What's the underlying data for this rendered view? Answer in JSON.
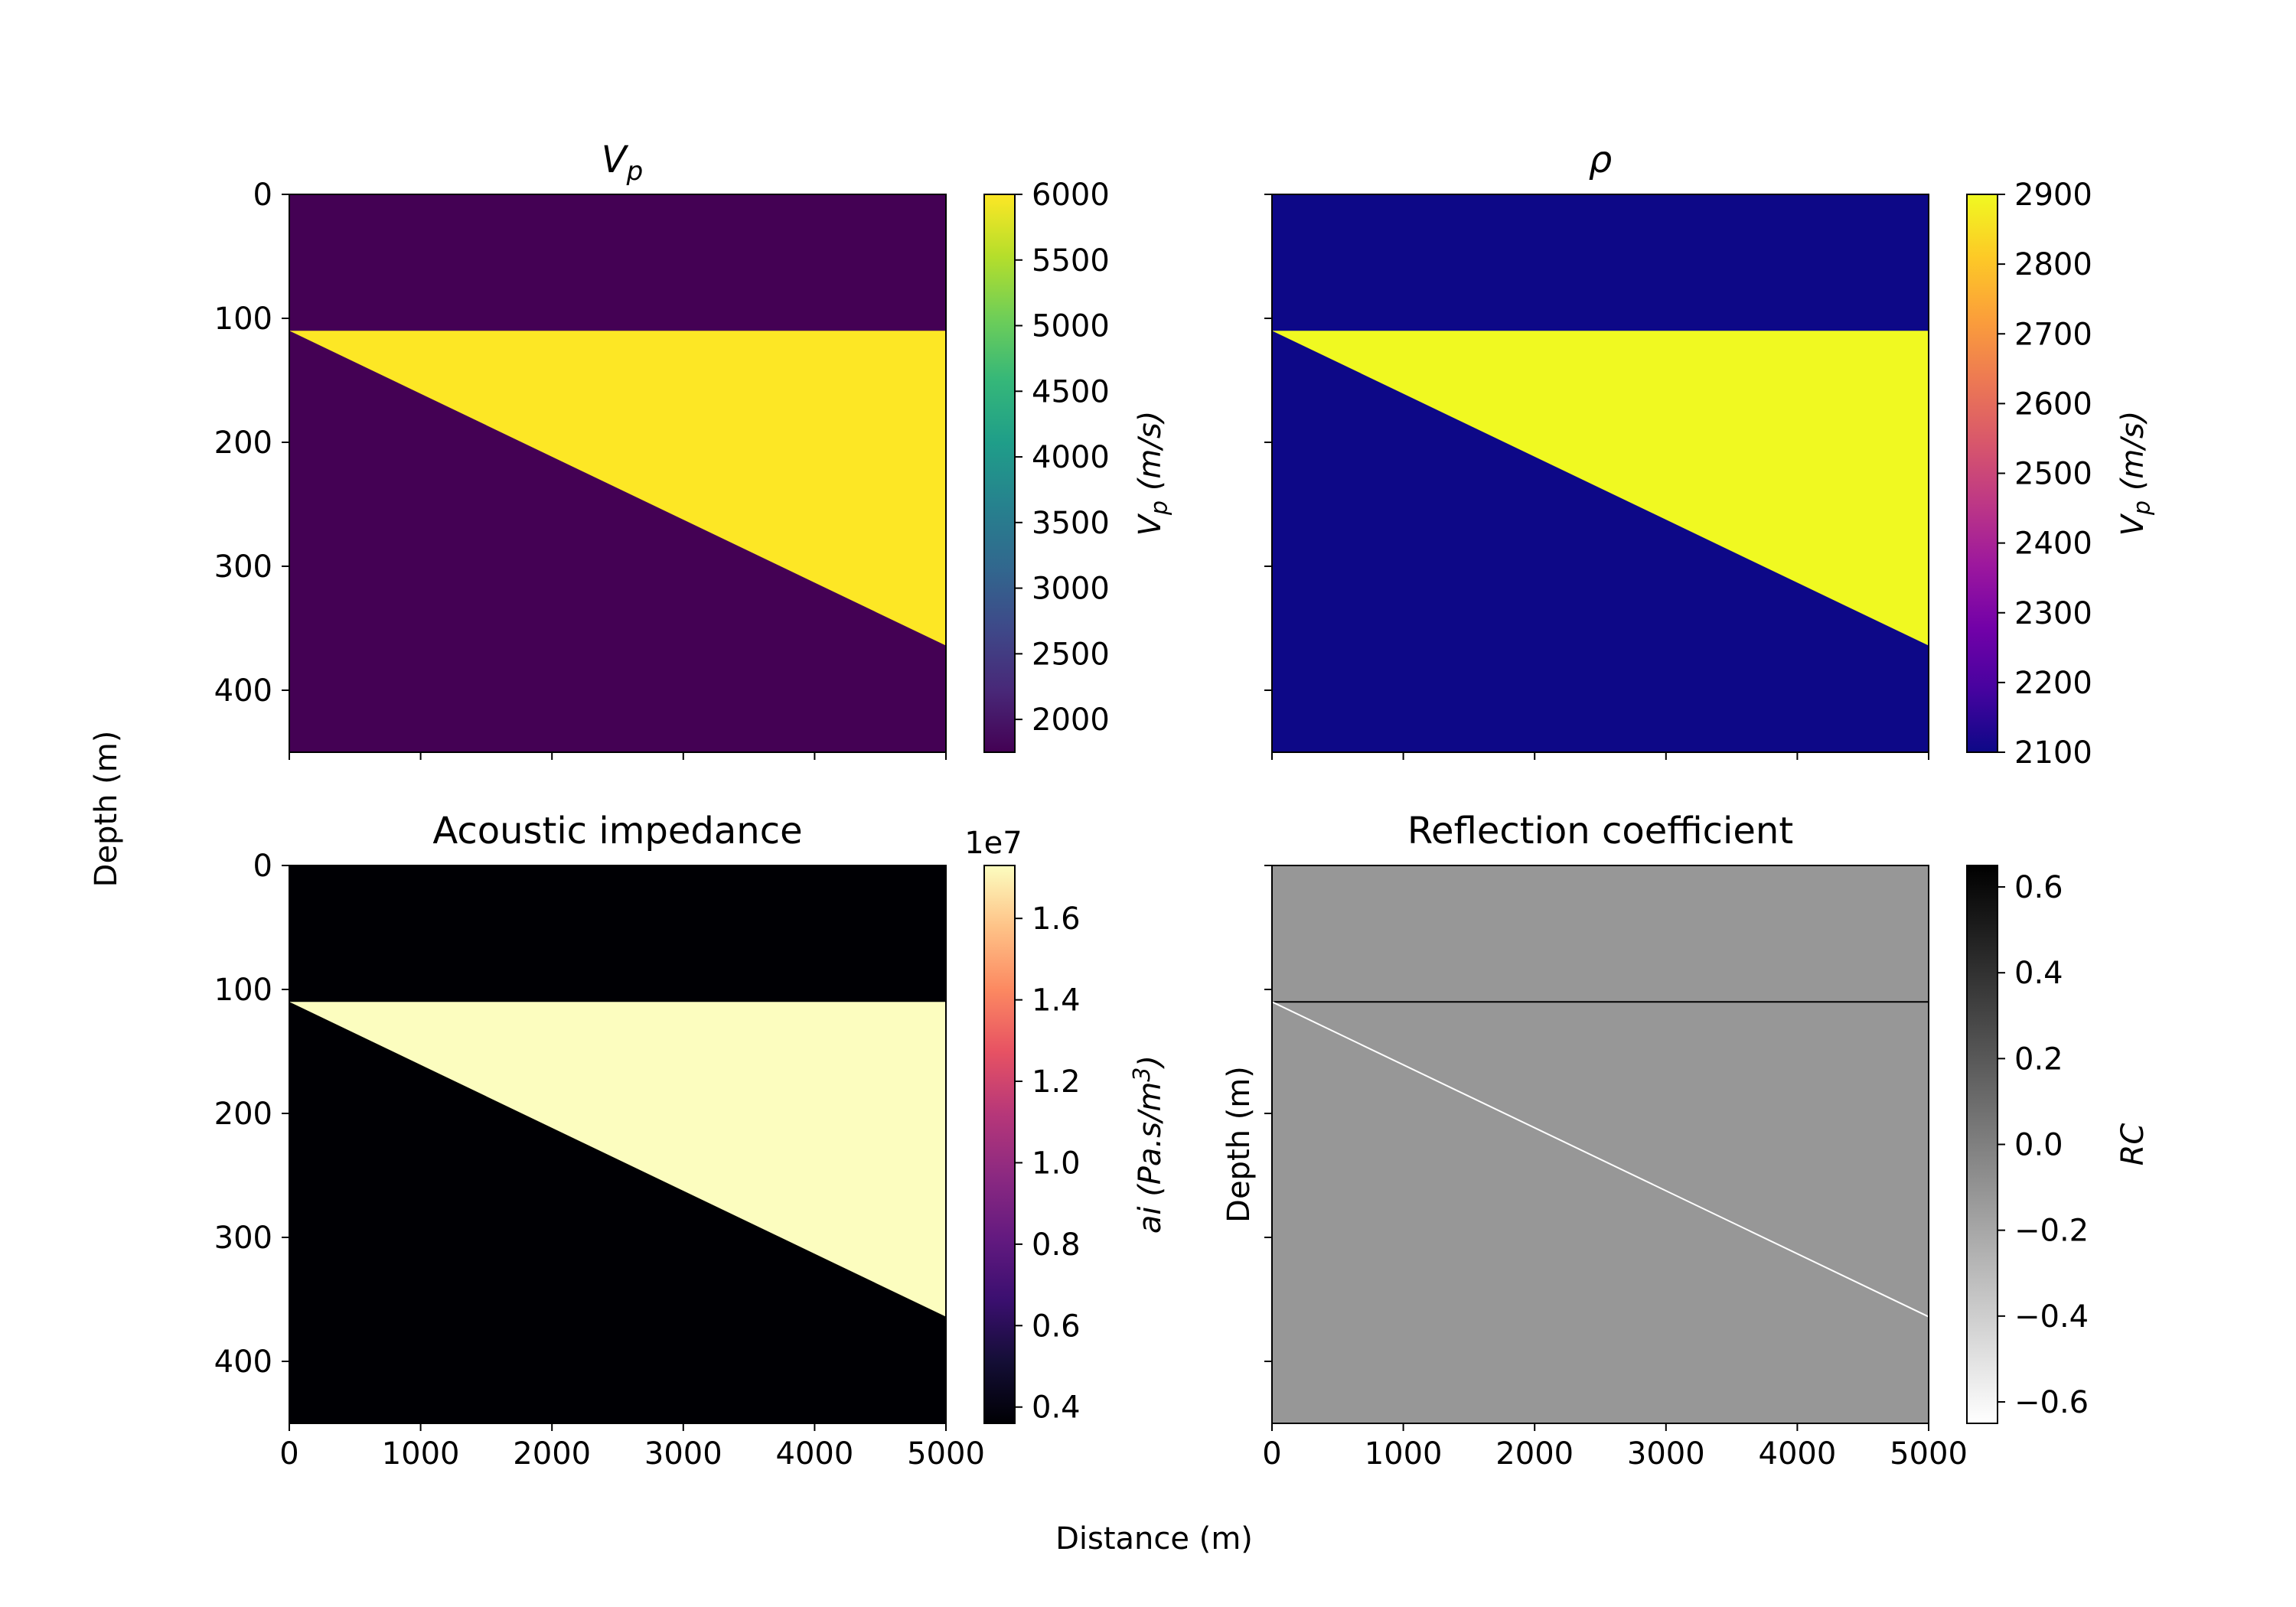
{
  "figure": {
    "xlabel": "Distance (m)",
    "ylabel": "Depth (m)"
  },
  "chart_data": [
    {
      "type": "heatmap",
      "title": "V",
      "title_subscript": "p",
      "colormap": "viridis",
      "x_range": [
        0,
        5000
      ],
      "y_range": [
        0,
        450
      ],
      "y_inverted": true,
      "x_ticks": [
        0,
        1000,
        2000,
        3000,
        4000,
        5000
      ],
      "x_tick_labels_shown": false,
      "y_ticks": [
        0,
        100,
        200,
        300,
        400
      ],
      "y_tick_labels_shown": true,
      "model": {
        "layer_top_depth": 110,
        "wedge_base_left_depth": 110,
        "wedge_base_right_depth": 364,
        "background_value": 1750,
        "wedge_value": 5800
      },
      "colorbar": {
        "label": "V",
        "label_subscript": "p",
        "label_suffix": " (m/s)",
        "ticks": [
          "6000",
          "5500",
          "5000",
          "4500",
          "4000",
          "3500",
          "3000",
          "2500",
          "2000"
        ],
        "tick_values": [
          6000,
          5500,
          5000,
          4500,
          4000,
          3500,
          3000,
          2500,
          2000
        ],
        "range": [
          1750,
          6000
        ],
        "offset_text": ""
      },
      "colors": {
        "background": "#440154",
        "wedge": "#fde725"
      }
    },
    {
      "type": "heatmap",
      "title": "ρ",
      "colormap": "plasma",
      "x_range": [
        0,
        5000
      ],
      "y_range": [
        0,
        450
      ],
      "y_inverted": true,
      "x_ticks": [
        0,
        1000,
        2000,
        3000,
        4000,
        5000
      ],
      "x_tick_labels_shown": false,
      "y_ticks": [
        0,
        100,
        200,
        300,
        400
      ],
      "y_tick_labels_shown": false,
      "model": {
        "layer_top_depth": 110,
        "wedge_base_left_depth": 110,
        "wedge_base_right_depth": 364,
        "background_value": 2100,
        "wedge_value": 2900
      },
      "colorbar": {
        "label": "V",
        "label_subscript": "p",
        "label_suffix": " (m/s)",
        "ticks": [
          "2900",
          "2800",
          "2700",
          "2600",
          "2500",
          "2400",
          "2300",
          "2200",
          "2100"
        ],
        "tick_values": [
          2900,
          2800,
          2700,
          2600,
          2500,
          2400,
          2300,
          2200,
          2100
        ],
        "range": [
          2100,
          2900
        ],
        "offset_text": ""
      },
      "colors": {
        "background": "#0d0887",
        "wedge": "#f0f921"
      }
    },
    {
      "type": "heatmap",
      "title": "Acoustic impedance",
      "colormap": "magma",
      "x_range": [
        0,
        5000
      ],
      "y_range": [
        0,
        450
      ],
      "y_inverted": true,
      "x_ticks": [
        0,
        1000,
        2000,
        3000,
        4000,
        5000
      ],
      "x_tick_labels_shown": true,
      "y_ticks": [
        0,
        100,
        200,
        300,
        400
      ],
      "y_tick_labels_shown": true,
      "model": {
        "layer_top_depth": 110,
        "wedge_base_left_depth": 110,
        "wedge_base_right_depth": 364,
        "background_value": 3700000.0,
        "wedge_value": 17200000.0
      },
      "colorbar": {
        "label": "ai (Pa.s/m",
        "label_superscript": "3",
        "label_suffix": ")",
        "ticks": [
          "1.6",
          "1.4",
          "1.2",
          "1.0",
          "0.8",
          "0.6",
          "0.4"
        ],
        "tick_values": [
          16000000.0,
          14000000.0,
          12000000.0,
          10000000.0,
          8000000.0,
          6000000.0,
          4000000.0
        ],
        "range": [
          3600000.0,
          17300000.0
        ],
        "offset_text": "1e7"
      },
      "colors": {
        "background": "#000004",
        "wedge": "#fcfdbf"
      }
    },
    {
      "type": "heatmap",
      "title": "Reflection coefficient",
      "colormap": "gray_r",
      "ylabel": "Depth (m)",
      "x_range": [
        0,
        5000
      ],
      "y_range": [
        0,
        450
      ],
      "y_inverted": true,
      "x_ticks": [
        0,
        1000,
        2000,
        3000,
        4000,
        5000
      ],
      "x_tick_labels_shown": true,
      "y_ticks": [
        0,
        100,
        200,
        300,
        400
      ],
      "y_tick_labels_shown": false,
      "model": {
        "layer_top_depth": 110,
        "wedge_base_left_depth": 110,
        "wedge_base_right_depth": 364,
        "background_value": 0.0,
        "top_interface_value": 0.65,
        "base_interface_value": -0.65
      },
      "colorbar": {
        "label": "RC",
        "ticks": [
          "0.6",
          "0.4",
          "0.2",
          "0.0",
          "−0.2",
          "−0.4",
          "−0.6"
        ],
        "tick_values": [
          0.6,
          0.4,
          0.2,
          0.0,
          -0.2,
          -0.4,
          -0.6
        ],
        "range": [
          -0.65,
          0.65
        ],
        "offset_text": ""
      },
      "colors": {
        "background": "#979797",
        "top_interface": "#000000",
        "base_interface": "#ffffff"
      }
    }
  ]
}
